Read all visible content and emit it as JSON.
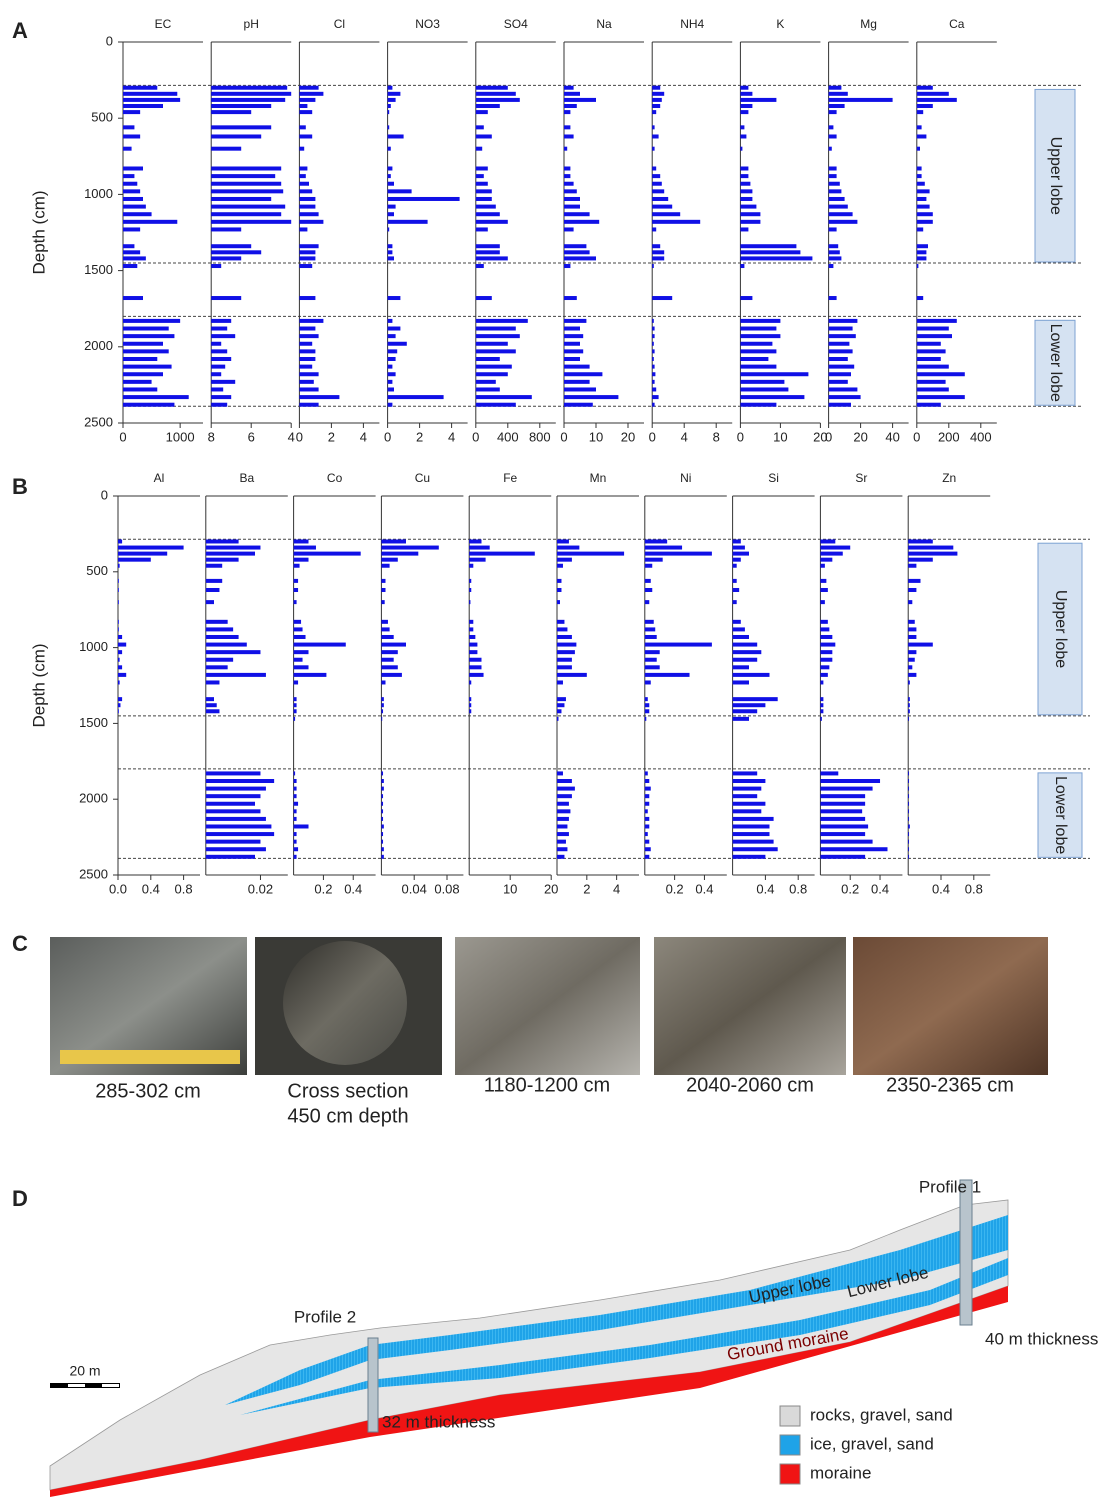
{
  "panel_labels": [
    "A",
    "B",
    "C",
    "D"
  ],
  "chart_data": [
    {
      "type": "depth-profile",
      "ylabel": "Depth (cm)",
      "ylim": [
        0,
        2500
      ],
      "yticks": [
        0,
        500,
        1000,
        1500,
        2000,
        2500
      ],
      "color": "#1010e6",
      "y": [
        300,
        340,
        380,
        420,
        460,
        560,
        620,
        700,
        830,
        880,
        930,
        980,
        1030,
        1080,
        1130,
        1180,
        1230,
        1340,
        1380,
        1420,
        1470,
        1680,
        1830,
        1880,
        1930,
        1980,
        2030,
        2080,
        2130,
        2180,
        2230,
        2280,
        2330,
        2380
      ],
      "zones": [
        {
          "label": "Upper lobe",
          "range": [
            285,
            1450
          ]
        },
        {
          "label": "Lower lobe",
          "range": [
            1800,
            2390
          ]
        }
      ],
      "series": [
        {
          "name": "EC",
          "xlim": [
            0,
            1400
          ],
          "xticks": [
            0,
            1000
          ],
          "values": [
            600,
            950,
            1000,
            700,
            300,
            200,
            300,
            150,
            350,
            200,
            250,
            300,
            350,
            400,
            500,
            950,
            300,
            200,
            300,
            400,
            250,
            350,
            1000,
            800,
            900,
            700,
            800,
            600,
            850,
            700,
            500,
            600,
            1150,
            900
          ]
        },
        {
          "name": "pH",
          "xlim": [
            8,
            4
          ],
          "xticks": [
            8,
            6,
            4
          ],
          "values": [
            4.2,
            4,
            4.3,
            5,
            6,
            5,
            5.5,
            6.5,
            4.5,
            4.8,
            4.5,
            4.4,
            5,
            4.3,
            4.5,
            4,
            6.5,
            6,
            5.5,
            6.5,
            7.5,
            6.5,
            7,
            7.2,
            6.8,
            7.5,
            7.2,
            7,
            7.3,
            7.5,
            6.8,
            7.4,
            7,
            7.2
          ]
        },
        {
          "name": "Cl",
          "xlim": [
            0,
            5
          ],
          "xticks": [
            0,
            2,
            4
          ],
          "values": [
            1.2,
            1.5,
            1,
            0.5,
            0.8,
            0.4,
            0.8,
            0.3,
            0.5,
            0.4,
            0.6,
            0.8,
            1,
            1,
            1.2,
            1.5,
            0.5,
            1.2,
            1,
            1,
            0.8,
            1,
            1.5,
            1,
            1.2,
            0.8,
            1,
            1,
            0.8,
            1.2,
            0.9,
            1.2,
            2.5,
            1.2
          ]
        },
        {
          "name": "NO3",
          "xlim": [
            0,
            5
          ],
          "xticks": [
            0,
            2,
            4
          ],
          "values": [
            0.3,
            0.8,
            0.5,
            0.2,
            0.1,
            0.1,
            1,
            0.2,
            0.3,
            0.2,
            0.4,
            1.5,
            4.5,
            0.5,
            0.4,
            2.5,
            0.1,
            0.3,
            0.3,
            0.4,
            0,
            0.8,
            0.3,
            0.8,
            0.5,
            1.2,
            0.6,
            0.5,
            0.3,
            0.5,
            0.3,
            0.4,
            3.5,
            0.3
          ]
        },
        {
          "name": "SO4",
          "xlim": [
            0,
            1000
          ],
          "xticks": [
            0,
            400,
            800
          ],
          "values": [
            400,
            500,
            550,
            300,
            150,
            100,
            200,
            80,
            150,
            100,
            150,
            200,
            200,
            250,
            300,
            400,
            150,
            300,
            300,
            400,
            100,
            200,
            650,
            500,
            550,
            400,
            500,
            300,
            450,
            400,
            250,
            300,
            700,
            500
          ]
        },
        {
          "name": "Na",
          "xlim": [
            0,
            25
          ],
          "xticks": [
            0,
            10,
            20
          ],
          "values": [
            3,
            5,
            10,
            4,
            2,
            2,
            3,
            1,
            2,
            2,
            3,
            4,
            5,
            5,
            8,
            11,
            3,
            7,
            8,
            10,
            2,
            4,
            7,
            5,
            6,
            5,
            6,
            5,
            8,
            12,
            8,
            10,
            17,
            9
          ]
        },
        {
          "name": "NH4",
          "xlim": [
            0,
            10
          ],
          "xticks": [
            0,
            4,
            8
          ],
          "values": [
            1,
            1.5,
            1.2,
            1,
            0.5,
            0.3,
            0.8,
            0.3,
            0.5,
            1,
            1.2,
            1.5,
            2,
            2.5,
            3.5,
            6,
            0.5,
            1,
            1.5,
            1.5,
            0.2,
            2.5,
            0.2,
            0.3,
            0.3,
            0.2,
            0.3,
            0.2,
            0.3,
            0.4,
            0.3,
            0.5,
            0.8,
            0.3
          ]
        },
        {
          "name": "K",
          "xlim": [
            0,
            20
          ],
          "xticks": [
            0,
            10,
            20
          ],
          "values": [
            2,
            3,
            9,
            3,
            2,
            1,
            1.5,
            0.5,
            2,
            2,
            2.5,
            3,
            3,
            4,
            5,
            5,
            2,
            14,
            15,
            18,
            1,
            3,
            10,
            9,
            10,
            8,
            9,
            7,
            9,
            17,
            11,
            12,
            16,
            9
          ]
        },
        {
          "name": "Mg",
          "xlim": [
            0,
            50
          ],
          "xticks": [
            0,
            20,
            40
          ],
          "values": [
            8,
            12,
            40,
            10,
            5,
            3,
            5,
            2,
            5,
            5,
            7,
            8,
            10,
            12,
            15,
            18,
            5,
            6,
            7,
            8,
            3,
            5,
            18,
            15,
            17,
            13,
            15,
            12,
            16,
            14,
            12,
            18,
            20,
            14
          ]
        },
        {
          "name": "Ca",
          "xlim": [
            0,
            500
          ],
          "xticks": [
            0,
            200,
            400
          ],
          "values": [
            100,
            200,
            250,
            100,
            40,
            30,
            60,
            20,
            30,
            30,
            50,
            80,
            60,
            80,
            100,
            100,
            40,
            70,
            60,
            60,
            10,
            40,
            250,
            200,
            220,
            150,
            180,
            150,
            200,
            300,
            180,
            200,
            300,
            150
          ]
        }
      ]
    },
    {
      "type": "depth-profile",
      "ylabel": "Depth (cm)",
      "ylim": [
        0,
        2500
      ],
      "yticks": [
        0,
        500,
        1000,
        1500,
        2000,
        2500
      ],
      "color": "#1010e6",
      "y": [
        300,
        340,
        380,
        420,
        460,
        560,
        620,
        700,
        830,
        880,
        930,
        980,
        1030,
        1080,
        1130,
        1180,
        1230,
        1340,
        1380,
        1420,
        1470,
        1680,
        1830,
        1880,
        1930,
        1980,
        2030,
        2080,
        2130,
        2180,
        2230,
        2280,
        2330,
        2380
      ],
      "zones": [
        {
          "label": "Upper lobe",
          "range": [
            285,
            1450
          ]
        },
        {
          "label": "Lower lobe",
          "range": [
            1800,
            2390
          ]
        }
      ],
      "series": [
        {
          "name": "Al",
          "xlim": [
            0,
            1
          ],
          "xticks": [
            {
              "value": 0,
              "label": "0.0"
            },
            0.4,
            0.8
          ],
          "values": [
            0.05,
            0.8,
            0.6,
            0.4,
            0.02,
            0.01,
            0.01,
            0.01,
            0.01,
            0.01,
            0.05,
            0.1,
            0.05,
            0.02,
            0.05,
            0.1,
            0.02,
            0.05,
            0.03,
            0.01,
            0,
            0,
            0,
            0,
            0,
            0,
            0,
            0,
            0,
            0,
            0,
            0,
            0,
            0
          ]
        },
        {
          "name": "Ba",
          "xlim": [
            0,
            0.03
          ],
          "xticks": [
            0.02
          ],
          "values": [
            0.012,
            0.02,
            0.018,
            0.012,
            0.006,
            0.006,
            0.005,
            0.003,
            0.008,
            0.01,
            0.012,
            0.015,
            0.02,
            0.01,
            0.008,
            0.022,
            0.005,
            0.003,
            0.004,
            0.005,
            0,
            0,
            0.02,
            0.025,
            0.022,
            0.02,
            0.018,
            0.02,
            0.022,
            0.024,
            0.025,
            0.02,
            0.022,
            0.018
          ]
        },
        {
          "name": "Co",
          "xlim": [
            0,
            0.55
          ],
          "xticks": [
            0.2,
            0.4
          ],
          "values": [
            0.1,
            0.15,
            0.45,
            0.1,
            0.04,
            0.03,
            0.03,
            0.02,
            0.05,
            0.06,
            0.08,
            0.35,
            0.1,
            0.06,
            0.1,
            0.22,
            0.03,
            0.02,
            0.02,
            0.02,
            0.01,
            0,
            0.01,
            0.02,
            0.02,
            0.02,
            0.03,
            0.02,
            0.02,
            0.1,
            0.02,
            0.02,
            0.03,
            0.02
          ]
        },
        {
          "name": "Cu",
          "xlim": [
            0,
            0.1
          ],
          "xticks": [
            0.04,
            0.08
          ],
          "values": [
            0.03,
            0.07,
            0.045,
            0.02,
            0.01,
            0.005,
            0.005,
            0.004,
            0.008,
            0.01,
            0.015,
            0.03,
            0.02,
            0.015,
            0.02,
            0.025,
            0.005,
            0.003,
            0.003,
            0.002,
            0.001,
            0,
            0.002,
            0.003,
            0.003,
            0.002,
            0.002,
            0.002,
            0.002,
            0.003,
            0.002,
            0.002,
            0.003,
            0.003
          ]
        },
        {
          "name": "Fe",
          "xlim": [
            0,
            20
          ],
          "xticks": [
            10,
            20
          ],
          "values": [
            3,
            5,
            16,
            4,
            1,
            0.5,
            0.5,
            0.3,
            1,
            1,
            1.5,
            2,
            2,
            3,
            3,
            3.5,
            0.5,
            0.5,
            0.5,
            0.5,
            0,
            0,
            0,
            0,
            0,
            0,
            0,
            0,
            0,
            0,
            0,
            0,
            0,
            0
          ]
        },
        {
          "name": "Mn",
          "xlim": [
            0,
            5.5
          ],
          "xticks": [
            2,
            4
          ],
          "values": [
            0.8,
            1.5,
            4.5,
            1,
            0.4,
            0.3,
            0.3,
            0.2,
            0.5,
            0.7,
            1,
            1.3,
            1.2,
            1,
            1,
            2,
            0.4,
            0.6,
            0.5,
            0.3,
            0.1,
            0,
            0.4,
            1,
            1.2,
            1,
            0.8,
            0.9,
            0.8,
            0.7,
            0.8,
            0.6,
            0.7,
            0.5
          ]
        },
        {
          "name": "Ni",
          "xlim": [
            0,
            0.55
          ],
          "xticks": [
            0.2,
            0.4
          ],
          "values": [
            0.15,
            0.25,
            0.45,
            0.12,
            0.05,
            0.04,
            0.05,
            0.03,
            0.06,
            0.07,
            0.08,
            0.45,
            0.1,
            0.08,
            0.1,
            0.3,
            0.04,
            0.02,
            0.03,
            0.03,
            0.01,
            0,
            0.02,
            0.03,
            0.04,
            0.03,
            0.03,
            0.02,
            0.03,
            0.03,
            0.02,
            0.03,
            0.04,
            0.03
          ]
        },
        {
          "name": "Si",
          "xlim": [
            0,
            1
          ],
          "xticks": [
            0.4,
            0.8
          ],
          "values": [
            0.1,
            0.15,
            0.2,
            0.1,
            0.05,
            0.05,
            0.08,
            0.05,
            0.1,
            0.15,
            0.2,
            0.3,
            0.35,
            0.3,
            0.2,
            0.45,
            0.2,
            0.55,
            0.4,
            0.3,
            0.2,
            0,
            0.3,
            0.4,
            0.35,
            0.3,
            0.4,
            0.35,
            0.5,
            0.45,
            0.45,
            0.5,
            0.55,
            0.4
          ]
        },
        {
          "name": "Sr",
          "xlim": [
            0,
            0.55
          ],
          "xticks": [
            0.2,
            0.4
          ],
          "values": [
            0.1,
            0.2,
            0.15,
            0.08,
            0.03,
            0.04,
            0.05,
            0.03,
            0.05,
            0.06,
            0.08,
            0.1,
            0.08,
            0.08,
            0.06,
            0.05,
            0.02,
            0.02,
            0.02,
            0.02,
            0.01,
            0,
            0.12,
            0.4,
            0.35,
            0.3,
            0.3,
            0.28,
            0.3,
            0.32,
            0.3,
            0.35,
            0.45,
            0.3
          ]
        },
        {
          "name": "Zn",
          "xlim": [
            0,
            1
          ],
          "xticks": [
            0.4,
            0.8
          ],
          "values": [
            0.3,
            0.55,
            0.6,
            0.3,
            0.1,
            0.15,
            0.1,
            0.05,
            0.08,
            0.1,
            0.1,
            0.3,
            0.1,
            0.08,
            0.05,
            0.1,
            0.02,
            0.02,
            0.02,
            0.02,
            0.01,
            0,
            0.01,
            0.01,
            0.01,
            0.01,
            0.01,
            0.01,
            0.01,
            0.02,
            0.01,
            0.01,
            0.01,
            0.01
          ]
        }
      ]
    }
  ],
  "photos": [
    {
      "caption": [
        "285-302 cm"
      ]
    },
    {
      "caption": [
        "Cross section",
        "450 cm depth"
      ]
    },
    {
      "caption": [
        "1180-1200 cm"
      ]
    },
    {
      "caption": [
        "2040-2060 cm"
      ]
    },
    {
      "caption": [
        "2350-2365 cm"
      ]
    }
  ],
  "profile_diagram": {
    "profile_1": "Profile 1",
    "profile_2": "Profile 2",
    "upper_lobe": "Upper lobe",
    "lower_lobe": "Lower lobe",
    "ground_moraine": "Ground moraine",
    "thickness_1": "40 m thickness",
    "thickness_2": "32 m thickness",
    "scale": "20 m",
    "legend": [
      {
        "label": "rocks, gravel, sand",
        "color": "#d9d9d9"
      },
      {
        "label": "ice, gravel, sand",
        "color": "#1fa3e8"
      },
      {
        "label": "moraine",
        "color": "#f01414"
      }
    ]
  }
}
